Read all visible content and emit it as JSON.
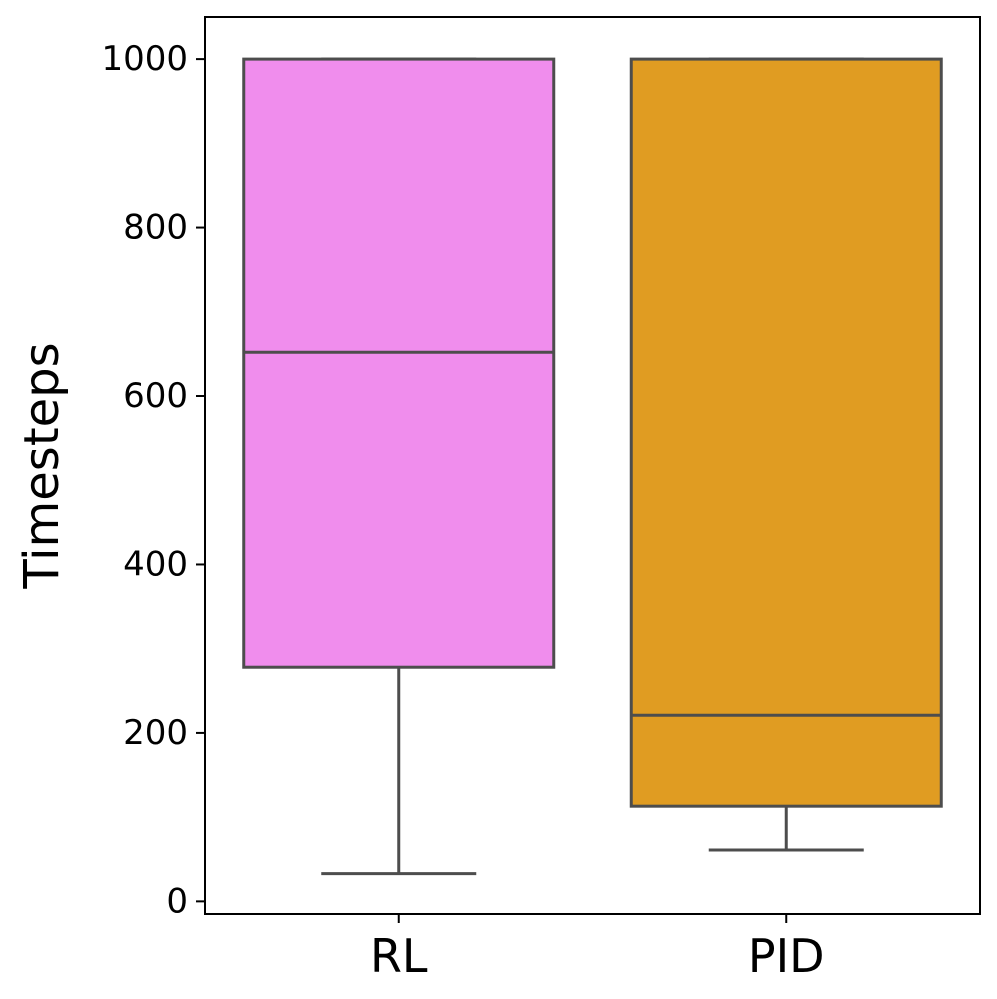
{
  "chart_data": {
    "type": "box",
    "title": "",
    "xlabel": "",
    "ylabel": "Timesteps",
    "ylim": [
      -15,
      1050
    ],
    "yticks": [
      0,
      200,
      400,
      600,
      800,
      1000
    ],
    "categories": [
      "RL",
      "PID"
    ],
    "grid": false,
    "legend": "none",
    "stroke_color": "#4d4d4d",
    "boxes": [
      {
        "category": "RL",
        "color": "#f08ded",
        "whisker_low": 33,
        "q1": 278,
        "median": 652,
        "q3": 1000,
        "whisker_high": 1000
      },
      {
        "category": "PID",
        "color": "#e09c22",
        "whisker_low": 61,
        "q1": 113,
        "median": 221,
        "q3": 1000,
        "whisker_high": 1000
      }
    ]
  }
}
